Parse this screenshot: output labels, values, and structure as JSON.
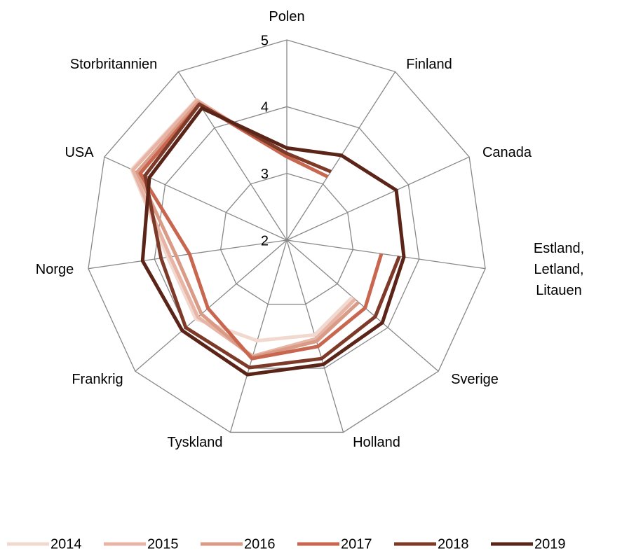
{
  "chart_data": {
    "type": "radar",
    "categories": [
      "Polen",
      "Finland",
      "Canada",
      "Estland, Letland, Litauen",
      "Sverige",
      "Holland",
      "Tyskland",
      "Frankrig",
      "Norge",
      "USA",
      "Storbritannien"
    ],
    "ylim": [
      2,
      5
    ],
    "yticks": [
      2,
      3,
      4,
      5
    ],
    "grid": true,
    "legend": "bottom",
    "series": [
      {
        "name": "2014",
        "color": "#f2d9cf",
        "values": [
          3.25,
          null,
          null,
          null,
          3.3,
          3.48,
          3.57,
          3.8,
          3.8,
          4.55,
          4.5
        ]
      },
      {
        "name": "2015",
        "color": "#e8b4a5",
        "values": [
          3.25,
          null,
          null,
          null,
          3.35,
          3.54,
          3.81,
          3.76,
          3.76,
          4.53,
          4.49
        ]
      },
      {
        "name": "2016",
        "color": "#d99a86",
        "values": [
          3.25,
          null,
          null,
          null,
          3.42,
          3.58,
          3.83,
          3.69,
          3.67,
          4.46,
          4.45
        ]
      },
      {
        "name": "2017",
        "color": "#c8664f",
        "values": [
          3.25,
          3.13,
          null,
          3.43,
          3.55,
          3.66,
          3.85,
          3.56,
          3.47,
          4.41,
          4.42
        ]
      },
      {
        "name": "2018",
        "color": "#7e3a28",
        "values": [
          3.3,
          3.22,
          null,
          3.7,
          3.75,
          3.85,
          3.99,
          4.0,
          3.9,
          4.33,
          4.42
        ]
      },
      {
        "name": "2019",
        "color": "#5a2418",
        "values": [
          3.38,
          3.51,
          3.8,
          3.77,
          3.89,
          3.94,
          4.1,
          4.07,
          4.18,
          4.26,
          4.35
        ]
      }
    ]
  }
}
